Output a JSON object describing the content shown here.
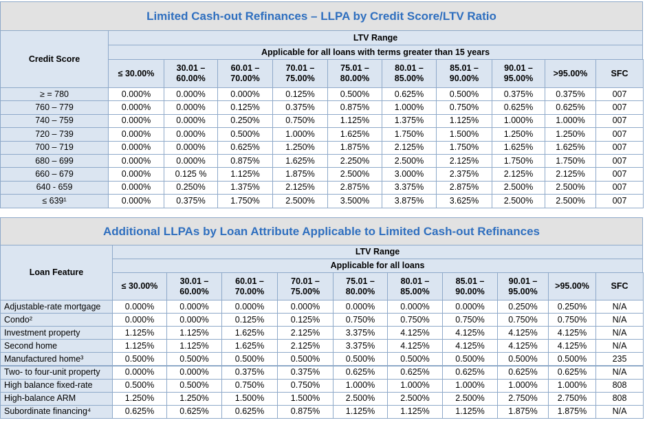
{
  "tables": [
    {
      "title": "Limited Cash-out Refinances – LLPA by Credit Score/LTV Ratio",
      "row_header": "Credit Score",
      "group_header": "LTV Range",
      "subheader": "Applicable for all loans with terms greater than 15 years",
      "columns": [
        [
          "≤ 30.00%"
        ],
        [
          "30.01 –",
          "60.00%"
        ],
        [
          "60.01 –",
          "70.00%"
        ],
        [
          "70.01 –",
          "75.00%"
        ],
        [
          "75.01 –",
          "80.00%"
        ],
        [
          "80.01 –",
          "85.00%"
        ],
        [
          "85.01 –",
          "90.00%"
        ],
        [
          "90.01 –",
          "95.00%"
        ],
        [
          ">95.00%"
        ],
        [
          "SFC"
        ]
      ],
      "rows": [
        {
          "label": "≥ = 780",
          "values": [
            "0.000%",
            "0.000%",
            "0.000%",
            "0.125%",
            "0.500%",
            "0.625%",
            "0.500%",
            "0.375%",
            "0.375%",
            "007"
          ]
        },
        {
          "label": "760 – 779",
          "values": [
            "0.000%",
            "0.000%",
            "0.125%",
            "0.375%",
            "0.875%",
            "1.000%",
            "0.750%",
            "0.625%",
            "0.625%",
            "007"
          ]
        },
        {
          "label": "740 – 759",
          "values": [
            "0.000%",
            "0.000%",
            "0.250%",
            "0.750%",
            "1.125%",
            "1.375%",
            "1.125%",
            "1.000%",
            "1.000%",
            "007"
          ]
        },
        {
          "label": "720 – 739",
          "values": [
            "0.000%",
            "0.000%",
            "0.500%",
            "1.000%",
            "1.625%",
            "1.750%",
            "1.500%",
            "1.250%",
            "1.250%",
            "007"
          ]
        },
        {
          "label": "700 – 719",
          "values": [
            "0.000%",
            "0.000%",
            "0.625%",
            "1.250%",
            "1.875%",
            "2.125%",
            "1.750%",
            "1.625%",
            "1.625%",
            "007"
          ]
        },
        {
          "label": "680 – 699",
          "values": [
            "0.000%",
            "0.000%",
            "0.875%",
            "1.625%",
            "2.250%",
            "2.500%",
            "2.125%",
            "1.750%",
            "1.750%",
            "007"
          ]
        },
        {
          "label": "660 – 679",
          "values": [
            "0.000%",
            "0.125 %",
            "1.125%",
            "1.875%",
            "2.500%",
            "3.000%",
            "2.375%",
            "2.125%",
            "2.125%",
            "007"
          ]
        },
        {
          "label": "640 - 659",
          "values": [
            "0.000%",
            "0.250%",
            "1.375%",
            "2.125%",
            "2.875%",
            "3.375%",
            "2.875%",
            "2.500%",
            "2.500%",
            "007"
          ]
        },
        {
          "label": "≤ 639¹",
          "values": [
            "0.000%",
            "0.375%",
            "1.750%",
            "2.500%",
            "3.500%",
            "3.875%",
            "3.625%",
            "2.500%",
            "2.500%",
            "007"
          ]
        }
      ]
    },
    {
      "title": "Additional LLPAs by Loan Attribute Applicable to Limited Cash-out Refinances",
      "row_header": "Loan Feature",
      "group_header": "LTV Range",
      "subheader": "Applicable for all loans",
      "columns": [
        [
          "≤ 30.00%"
        ],
        [
          "30.01 –",
          "60.00%"
        ],
        [
          "60.01 –",
          "70.00%"
        ],
        [
          "70.01 –",
          "75.00%"
        ],
        [
          "75.01 –",
          "80.00%"
        ],
        [
          "80.01 –",
          "85.00%"
        ],
        [
          "85.01 –",
          "90.00%"
        ],
        [
          "90.01 –",
          "95.00%"
        ],
        [
          ">95.00%"
        ],
        [
          "SFC"
        ]
      ],
      "rows": [
        {
          "label": "Adjustable-rate mortgage",
          "values": [
            "0.000%",
            "0.000%",
            "0.000%",
            "0.000%",
            "0.000%",
            "0.000%",
            "0.000%",
            "0.250%",
            "0.250%",
            "N/A"
          ]
        },
        {
          "label": "Condo²",
          "values": [
            "0.000%",
            "0.000%",
            "0.125%",
            "0.125%",
            "0.750%",
            "0.750%",
            "0.750%",
            "0.750%",
            "0.750%",
            "N/A"
          ]
        },
        {
          "label": "Investment property",
          "values": [
            "1.125%",
            "1.125%",
            "1.625%",
            "2.125%",
            "3.375%",
            "4.125%",
            "4.125%",
            "4.125%",
            "4.125%",
            "N/A"
          ]
        },
        {
          "label": "Second home",
          "values": [
            "1.125%",
            "1.125%",
            "1.625%",
            "2.125%",
            "3.375%",
            "4.125%",
            "4.125%",
            "4.125%",
            "4.125%",
            "N/A"
          ]
        },
        {
          "label": "Manufactured home³",
          "values": [
            "0.500%",
            "0.500%",
            "0.500%",
            "0.500%",
            "0.500%",
            "0.500%",
            "0.500%",
            "0.500%",
            "0.500%",
            "235"
          ]
        },
        {
          "label": "Two- to four-unit property",
          "values": [
            "0.000%",
            "0.000%",
            "0.375%",
            "0.375%",
            "0.625%",
            "0.625%",
            "0.625%",
            "0.625%",
            "0.625%",
            "N/A"
          ]
        },
        {
          "label": "High balance fixed-rate",
          "values": [
            "0.500%",
            "0.500%",
            "0.750%",
            "0.750%",
            "1.000%",
            "1.000%",
            "1.000%",
            "1.000%",
            "1.000%",
            "808"
          ]
        },
        {
          "label": "High-balance ARM",
          "values": [
            "1.250%",
            "1.250%",
            "1.500%",
            "1.500%",
            "2.500%",
            "2.500%",
            "2.500%",
            "2.750%",
            "2.750%",
            "808"
          ]
        },
        {
          "label": "Subordinate financing⁴",
          "values": [
            "0.625%",
            "0.625%",
            "0.625%",
            "0.875%",
            "1.125%",
            "1.125%",
            "1.125%",
            "1.875%",
            "1.875%",
            "N/A"
          ]
        }
      ]
    }
  ]
}
